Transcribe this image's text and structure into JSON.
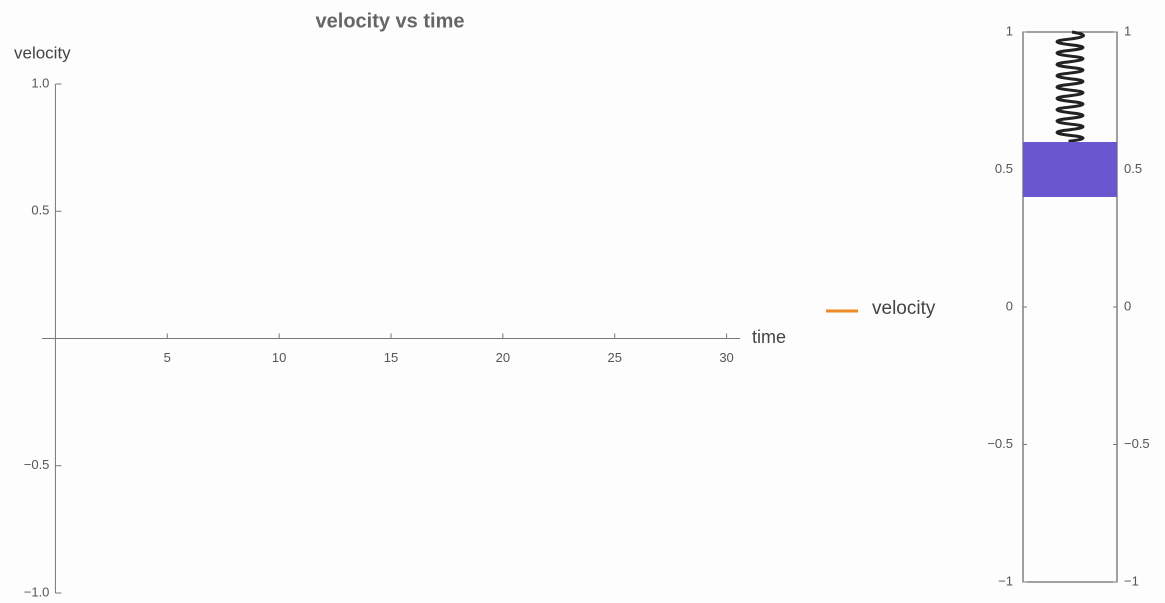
{
  "chart_data": [
    {
      "type": "line",
      "title": "velocity vs time",
      "x_label": "time",
      "y_label": "velocity",
      "x": [],
      "series": [
        {
          "name": "velocity",
          "color": "#f08a24",
          "values": []
        }
      ],
      "xlim": [
        -0.6,
        30.6
      ],
      "xticks": [
        5,
        10,
        15,
        20,
        25,
        30
      ],
      "ylim": [
        -1,
        1
      ],
      "yticks": [
        {
          "value": -1,
          "label": "−1.0"
        },
        {
          "value": -0.5,
          "label": "−0.5"
        },
        0.5,
        {
          "value": 1,
          "label": "1.0"
        }
      ],
      "legend": "right"
    },
    {
      "type": "spring",
      "ylim": [
        -1,
        1
      ],
      "yticks": [
        {
          "value": -1,
          "label": "−1"
        },
        {
          "value": -0.5,
          "label": "−0.5"
        },
        0,
        0.5,
        1
      ],
      "mass": [
        0.4,
        0.6
      ],
      "mass_color": "#6a56cf"
    }
  ]
}
